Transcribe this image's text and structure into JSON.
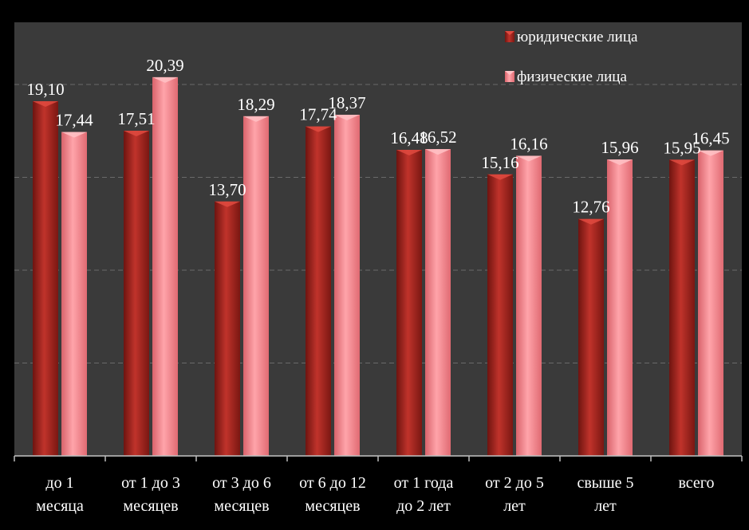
{
  "chart_data": {
    "type": "bar",
    "title": "",
    "xlabel": "",
    "ylabel": "",
    "ylim": [
      0,
      25
    ],
    "grid": true,
    "legend_position": "top-right",
    "categories": [
      [
        "до 1",
        "месяца"
      ],
      [
        "от 1 до 3",
        "месяцев"
      ],
      [
        "от 3 до 6",
        "месяцев"
      ],
      [
        "от 6 до 12",
        "месяцев"
      ],
      [
        "от 1 года",
        "до 2 лет"
      ],
      [
        "от 2 до 5",
        "лет"
      ],
      [
        "свыше 5",
        "лет"
      ],
      [
        "всего"
      ]
    ],
    "series": [
      {
        "name": "юридические лица",
        "values": [
          19.1,
          17.51,
          13.7,
          17.74,
          16.48,
          15.16,
          12.76,
          15.95
        ],
        "labels": [
          "19,10",
          "17,51",
          "13,70",
          "17,74",
          "16,48",
          "15,16",
          "12,76",
          "15,95"
        ],
        "color": "#a8231e"
      },
      {
        "name": "физические лица",
        "values": [
          17.44,
          20.39,
          18.29,
          18.37,
          16.52,
          16.16,
          15.96,
          16.45
        ],
        "labels": [
          "17,44",
          "20,39",
          "18,29",
          "18,37",
          "16,52",
          "16,16",
          "15,96",
          "16,45"
        ],
        "color": "#f07f86"
      }
    ]
  },
  "colors": {
    "plot_background": "#3a3a3a",
    "page_background": "#000000",
    "gridline": "#6a6a6a",
    "text": "#ffffff"
  }
}
